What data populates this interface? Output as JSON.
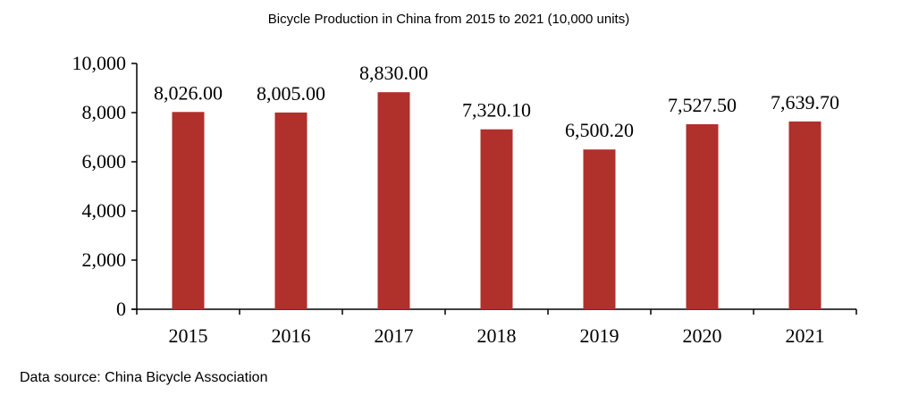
{
  "chart_data": {
    "type": "bar",
    "title": "Bicycle Production in China from 2015 to 2021 (10,000 units)",
    "categories": [
      "2015",
      "2016",
      "2017",
      "2018",
      "2019",
      "2020",
      "2021"
    ],
    "values": [
      8026.0,
      8005.0,
      8830.0,
      7320.1,
      6500.2,
      7527.5,
      7639.7
    ],
    "data_labels": [
      "8,026.00",
      "8,005.00",
      "8,830.00",
      "7,320.10",
      "6,500.20",
      "7,527.50",
      "7,639.70"
    ],
    "yticks": [
      "0",
      "2,000",
      "4,000",
      "6,000",
      "8,000",
      "10,000"
    ],
    "ytick_values": [
      0,
      2000,
      4000,
      6000,
      8000,
      10000
    ],
    "ylim": [
      0,
      10000
    ],
    "xlabel": "",
    "ylabel": "",
    "grid": false,
    "bar_color": "#b0302c",
    "source": "Data source: China Bicycle Association"
  }
}
